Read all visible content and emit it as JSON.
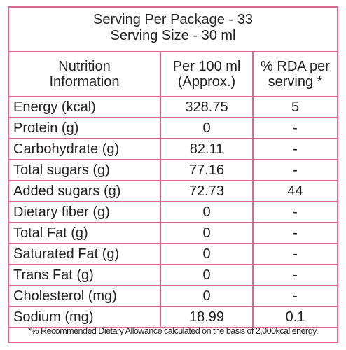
{
  "header": {
    "serving_per_package": "Serving Per Package - 33",
    "serving_size": "Serving Size - 30 ml"
  },
  "table": {
    "columns": [
      {
        "line1": "Nutrition",
        "line2": "Information"
      },
      {
        "line1": "Per 100 ml",
        "line2": "(Approx.)"
      },
      {
        "line1": "% RDA per",
        "line2": "serving *"
      }
    ],
    "rows": [
      {
        "nutrient": "Energy (kcal)",
        "per100": "328.75",
        "rda": "5"
      },
      {
        "nutrient": "Protein (g)",
        "per100": "0",
        "rda": "-"
      },
      {
        "nutrient": "Carbohydrate (g)",
        "per100": "82.11",
        "rda": "-"
      },
      {
        "nutrient": "Total sugars (g)",
        "per100": "77.16",
        "rda": "-"
      },
      {
        "nutrient": "Added sugars (g)",
        "per100": "72.73",
        "rda": "44"
      },
      {
        "nutrient": "Dietary fiber (g)",
        "per100": "0",
        "rda": "-"
      },
      {
        "nutrient": "Total Fat (g)",
        "per100": "0",
        "rda": "-"
      },
      {
        "nutrient": "Saturated Fat (g)",
        "per100": "0",
        "rda": "-"
      },
      {
        "nutrient": "Trans Fat (g)",
        "per100": "0",
        "rda": "-"
      },
      {
        "nutrient": "Cholesterol (mg)",
        "per100": "0",
        "rda": "-"
      },
      {
        "nutrient": "Sodium (mg)",
        "per100": "18.99",
        "rda": "0.1"
      }
    ]
  },
  "footnote": "*% Recommended Dietary Allowance calculated on the basis of 2,000kcal energy.",
  "colors": {
    "border": "#e0668f",
    "text": "#231f20"
  }
}
